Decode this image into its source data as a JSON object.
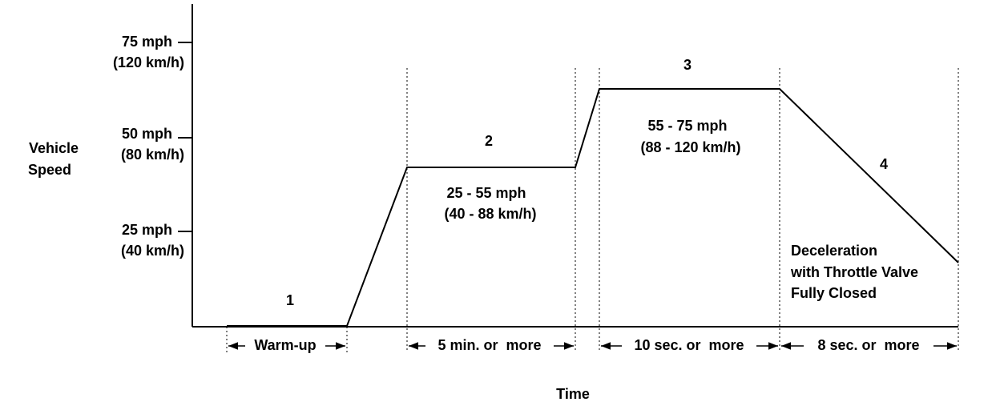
{
  "axis": {
    "y_label": [
      "Vehicle",
      "Speed"
    ],
    "x_label": "Time",
    "ticks": [
      {
        "mph": "75 mph",
        "kmh": "(120 km/h)"
      },
      {
        "mph": "50 mph",
        "kmh": "(80 km/h)"
      },
      {
        "mph": "25 mph",
        "kmh": "(40 km/h)"
      }
    ]
  },
  "phases": [
    {
      "number": "1",
      "duration": "Warm-up"
    },
    {
      "number": "2",
      "range_mph": "25 - 55 mph",
      "range_kmh": "(40 - 88 km/h)",
      "duration": "5 min. or  more"
    },
    {
      "number": "3",
      "range_mph": "55 - 75 mph",
      "range_kmh": "(88 - 120 km/h)",
      "duration": "10 sec. or  more"
    },
    {
      "number": "4",
      "note": [
        "Deceleration",
        "with Throttle Valve",
        "Fully Closed"
      ],
      "duration": "8 sec. or  more"
    }
  ]
}
